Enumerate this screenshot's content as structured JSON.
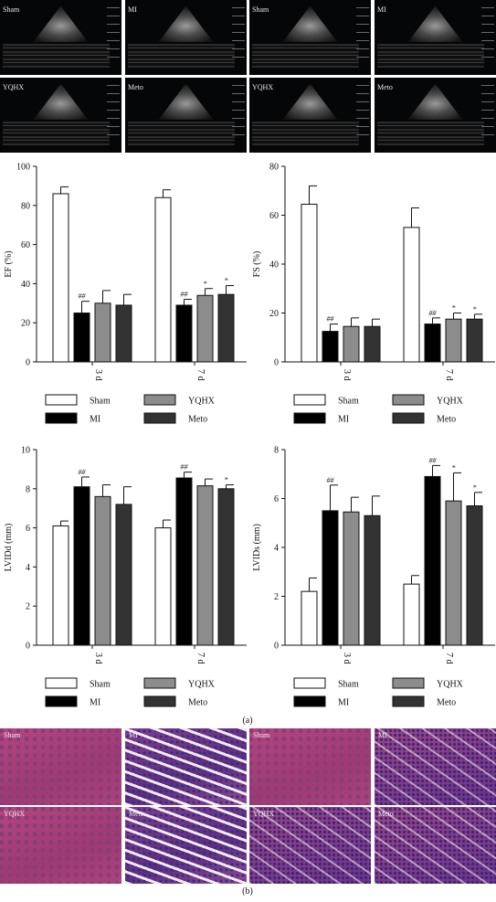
{
  "panel_labels": {
    "a": "(a)",
    "b": "(b)"
  },
  "echo_panels": [
    {
      "label": "Sham"
    },
    {
      "label": "MI"
    },
    {
      "label": "Sham"
    },
    {
      "label": "MI"
    },
    {
      "label": "YQHX"
    },
    {
      "label": "Meto"
    },
    {
      "label": "YQHX"
    },
    {
      "label": "Meto"
    }
  ],
  "histo_panels": [
    {
      "label": "Sham",
      "style": "pink"
    },
    {
      "label": "MI",
      "style": "fib"
    },
    {
      "label": "Sham",
      "style": "pink"
    },
    {
      "label": "MI",
      "style": "mixed"
    },
    {
      "label": "YQHX",
      "style": "pink"
    },
    {
      "label": "Meto",
      "style": "fib"
    },
    {
      "label": "YQHX",
      "style": "mixed"
    },
    {
      "label": "Meto",
      "style": "mixed"
    }
  ],
  "colors": {
    "Sham": "#ffffff",
    "MI": "#000000",
    "YQHX": "#8c8c8c",
    "Meto": "#333333"
  },
  "chart_data": [
    {
      "type": "bar",
      "ylabel": "EF (%)",
      "ylim": [
        0,
        100
      ],
      "yticks": [
        0,
        20,
        40,
        60,
        80,
        100
      ],
      "categories": [
        "3 d",
        "7 d"
      ],
      "series": [
        {
          "name": "Sham",
          "values": [
            86,
            84
          ],
          "errors": [
            3.5,
            4
          ],
          "marks": [
            "",
            ""
          ]
        },
        {
          "name": "MI",
          "values": [
            25,
            29
          ],
          "errors": [
            6,
            3
          ],
          "marks": [
            "##",
            "##"
          ]
        },
        {
          "name": "YQHX",
          "values": [
            30,
            34
          ],
          "errors": [
            6.5,
            3.5
          ],
          "marks": [
            "",
            "*"
          ]
        },
        {
          "name": "Meto",
          "values": [
            29,
            34.5
          ],
          "errors": [
            5.5,
            4.5
          ],
          "marks": [
            "",
            "*"
          ]
        }
      ],
      "legend": [
        [
          "Sham",
          "YQHX"
        ],
        [
          "MI",
          "Meto"
        ]
      ]
    },
    {
      "type": "bar",
      "ylabel": "FS (%)",
      "ylim": [
        0,
        80
      ],
      "yticks": [
        0,
        20,
        40,
        60,
        80
      ],
      "categories": [
        "3 d",
        "7 d"
      ],
      "series": [
        {
          "name": "Sham",
          "values": [
            64.5,
            55
          ],
          "errors": [
            7.5,
            8
          ],
          "marks": [
            "",
            ""
          ]
        },
        {
          "name": "MI",
          "values": [
            12.5,
            15.5
          ],
          "errors": [
            3,
            2.5
          ],
          "marks": [
            "##",
            "##"
          ]
        },
        {
          "name": "YQHX",
          "values": [
            14.5,
            17.5
          ],
          "errors": [
            3.5,
            2.5
          ],
          "marks": [
            "",
            "*"
          ]
        },
        {
          "name": "Meto",
          "values": [
            14.5,
            17.5
          ],
          "errors": [
            3,
            2
          ],
          "marks": [
            "",
            "*"
          ]
        }
      ],
      "legend": [
        [
          "Sham",
          "YQHX"
        ],
        [
          "MI",
          "Meto"
        ]
      ]
    },
    {
      "type": "bar",
      "ylabel": "LVIDd (mm)",
      "ylim": [
        0,
        10
      ],
      "yticks": [
        0,
        2,
        4,
        6,
        8,
        10
      ],
      "categories": [
        "3 d",
        "7 d"
      ],
      "series": [
        {
          "name": "Sham",
          "values": [
            6.1,
            6.0
          ],
          "errors": [
            0.25,
            0.4
          ],
          "marks": [
            "",
            ""
          ]
        },
        {
          "name": "MI",
          "values": [
            8.1,
            8.55
          ],
          "errors": [
            0.5,
            0.3
          ],
          "marks": [
            "##",
            "##"
          ]
        },
        {
          "name": "YQHX",
          "values": [
            7.6,
            8.15
          ],
          "errors": [
            0.6,
            0.35
          ],
          "marks": [
            "",
            ""
          ]
        },
        {
          "name": "Meto",
          "values": [
            7.2,
            8.0
          ],
          "errors": [
            0.9,
            0.2
          ],
          "marks": [
            "",
            "*"
          ]
        }
      ],
      "legend": [
        [
          "Sham",
          "YQHX"
        ],
        [
          "MI",
          "Meto"
        ]
      ]
    },
    {
      "type": "bar",
      "ylabel": "LVIDs (mm)",
      "ylim": [
        0,
        8
      ],
      "yticks": [
        0,
        2,
        4,
        6,
        8
      ],
      "categories": [
        "3 d",
        "7 d"
      ],
      "series": [
        {
          "name": "Sham",
          "values": [
            2.2,
            2.5
          ],
          "errors": [
            0.55,
            0.35
          ],
          "marks": [
            "",
            ""
          ]
        },
        {
          "name": "MI",
          "values": [
            5.5,
            6.9
          ],
          "errors": [
            1.05,
            0.45
          ],
          "marks": [
            "##",
            "##"
          ]
        },
        {
          "name": "YQHX",
          "values": [
            5.45,
            5.9
          ],
          "errors": [
            0.6,
            1.15
          ],
          "marks": [
            "",
            "*"
          ]
        },
        {
          "name": "Meto",
          "values": [
            5.3,
            5.7
          ],
          "errors": [
            0.8,
            0.55
          ],
          "marks": [
            "",
            "*"
          ]
        }
      ],
      "legend": [
        [
          "Sham",
          "YQHX"
        ],
        [
          "MI",
          "Meto"
        ]
      ]
    }
  ]
}
